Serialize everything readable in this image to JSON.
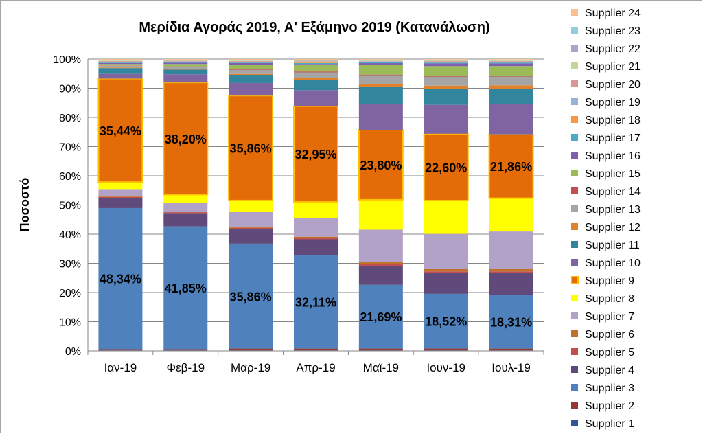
{
  "chart_data": {
    "type": "bar",
    "stacked": true,
    "percent_stacked": true,
    "title": "Μερίδια Αγοράς 2019, Α' Εξάμηνο 2019 (Κατανάλωση)",
    "xlabel": "",
    "ylabel": "Ποσοστό",
    "ylim": [
      0,
      100
    ],
    "y_ticks": [
      "0%",
      "10%",
      "20%",
      "30%",
      "40%",
      "50%",
      "60%",
      "70%",
      "80%",
      "90%",
      "100%"
    ],
    "grid": true,
    "legend_position": "right",
    "categories": [
      "Ιαν-19",
      "Φεβ-19",
      "Μαρ-19",
      "Απρ-19",
      "Μαϊ-19",
      "Ιουν-19",
      "Ιουλ-19"
    ],
    "series": [
      {
        "name": "Supplier 1",
        "color": "#2f5597",
        "values": [
          0.2,
          0.2,
          0.2,
          0.2,
          0.2,
          0.2,
          0.2
        ]
      },
      {
        "name": "Supplier 2",
        "color": "#953735",
        "values": [
          0.4,
          0.4,
          0.6,
          0.6,
          0.6,
          0.6,
          0.6
        ]
      },
      {
        "name": "Supplier 3",
        "color": "#4f81bd",
        "values": [
          48.34,
          41.85,
          35.86,
          32.11,
          21.69,
          18.52,
          18.31
        ]
      },
      {
        "name": "Supplier 4",
        "color": "#604a7b",
        "values": [
          3.5,
          4.5,
          5.0,
          5.5,
          6.5,
          7.0,
          7.5
        ]
      },
      {
        "name": "Supplier 5",
        "color": "#c0504d",
        "values": [
          0.3,
          0.3,
          0.4,
          0.4,
          0.5,
          0.6,
          0.6
        ]
      },
      {
        "name": "Supplier 6",
        "color": "#c0712c",
        "values": [
          0.2,
          0.2,
          0.4,
          0.5,
          0.8,
          0.9,
          0.9
        ]
      },
      {
        "name": "Supplier 7",
        "color": "#b3a2c7",
        "values": [
          2.5,
          3.0,
          5.0,
          6.5,
          11.0,
          11.8,
          12.8
        ]
      },
      {
        "name": "Supplier 8",
        "color": "#ffff00",
        "values": [
          2.4,
          2.8,
          4.0,
          5.5,
          10.2,
          11.3,
          11.4
        ]
      },
      {
        "name": "Supplier 9",
        "color": "#e36c09",
        "values": [
          35.44,
          38.2,
          35.86,
          32.95,
          23.8,
          22.6,
          21.86
        ]
      },
      {
        "name": "Supplier 10",
        "color": "#8064a2",
        "values": [
          1.6,
          2.8,
          4.3,
          5.5,
          8.8,
          9.8,
          10.4
        ]
      },
      {
        "name": "Supplier 11",
        "color": "#31859c",
        "values": [
          2.0,
          1.6,
          2.8,
          3.5,
          5.8,
          5.5,
          5.2
        ]
      },
      {
        "name": "Supplier 12",
        "color": "#e0812b",
        "values": [
          0.2,
          0.2,
          0.3,
          0.6,
          1.0,
          1.0,
          1.2
        ]
      },
      {
        "name": "Supplier 13",
        "color": "#a5a5a5",
        "values": [
          0.6,
          0.8,
          1.4,
          2.0,
          3.0,
          3.0,
          3.0
        ]
      },
      {
        "name": "Supplier 14",
        "color": "#c0504d",
        "values": [
          0.1,
          0.1,
          0.2,
          0.3,
          0.2,
          0.3,
          0.3
        ]
      },
      {
        "name": "Supplier 15",
        "color": "#9bbb59",
        "values": [
          0.5,
          0.8,
          1.6,
          2.2,
          3.2,
          3.3,
          3.3
        ]
      },
      {
        "name": "Supplier 16",
        "color": "#7f5fb0",
        "values": [
          0.3,
          0.4,
          0.5,
          0.4,
          0.7,
          0.9,
          0.9
        ]
      },
      {
        "name": "Supplier 17",
        "color": "#4bacc6",
        "values": [
          0.2,
          0.2,
          0.2,
          0.3,
          0.3,
          0.3,
          0.3
        ]
      },
      {
        "name": "Supplier 18",
        "color": "#f79646",
        "values": [
          0.2,
          0.2,
          0.2,
          0.2,
          0.2,
          0.2,
          0.2
        ]
      },
      {
        "name": "Supplier 19",
        "color": "#95b3d7",
        "values": [
          0.1,
          0.1,
          0.1,
          0.1,
          0.1,
          0.1,
          0.1
        ]
      },
      {
        "name": "Supplier 20",
        "color": "#d99694",
        "values": [
          0.2,
          0.2,
          0.2,
          0.3,
          0.1,
          0.2,
          0.2
        ]
      },
      {
        "name": "Supplier 21",
        "color": "#c3d69b",
        "values": [
          0.2,
          0.2,
          0.2,
          0.2,
          0.2,
          0.2,
          0.2
        ]
      },
      {
        "name": "Supplier 22",
        "color": "#b3a2c7",
        "values": [
          0.1,
          0.1,
          0.1,
          0.2,
          0.2,
          0.2,
          0.2
        ]
      },
      {
        "name": "Supplier 23",
        "color": "#93cddd",
        "values": [
          0.1,
          0.1,
          0.1,
          0.1,
          0.1,
          0.1,
          0.1
        ]
      },
      {
        "name": "Supplier 24",
        "color": "#fac090",
        "values": [
          0.3,
          0.2,
          0.3,
          0.3,
          0.2,
          0.2,
          0.2
        ]
      }
    ],
    "data_labels": [
      {
        "series": "Supplier 3",
        "labels": [
          "48,34%",
          "41,85%",
          "35,86%",
          "32,11%",
          "21,69%",
          "18,52%",
          "18,31%"
        ]
      },
      {
        "series": "Supplier 9",
        "labels": [
          "35,44%",
          "38,20%",
          "35,86%",
          "32,95%",
          "23,80%",
          "22,60%",
          "21,86%"
        ]
      }
    ],
    "highlight_series": "Supplier 9",
    "highlight_border_color": "#ffc000"
  }
}
